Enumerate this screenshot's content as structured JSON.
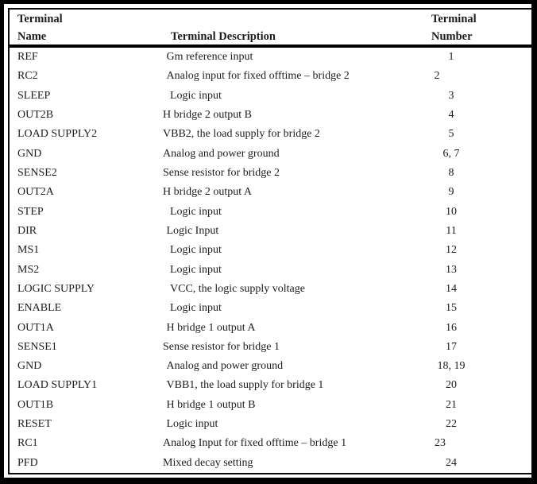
{
  "document": {
    "header": {
      "col_name": {
        "line1": "Terminal",
        "line2": "Name"
      },
      "col_description": "Terminal Description",
      "col_number": {
        "line1": "Terminal",
        "line2": "Number"
      }
    },
    "rows": [
      {
        "name": "REF",
        "description": "Gm reference input",
        "number": "1",
        "indent": 1,
        "num_shift": 0
      },
      {
        "name": "RC2",
        "description": "Analog input for fixed offtime – bridge 2",
        "number": "2",
        "indent": 1,
        "num_shift": -18
      },
      {
        "name": "SLEEP",
        "description": "Logic input",
        "number": "3",
        "indent": 2,
        "num_shift": 0
      },
      {
        "name": "OUT2B",
        "description": "H bridge 2 output B",
        "number": "4",
        "indent": 0,
        "num_shift": 0
      },
      {
        "name": "LOAD SUPPLY2",
        "description": "VBB2, the load supply for bridge 2",
        "number": "5",
        "indent": 0,
        "num_shift": 0
      },
      {
        "name": "GND",
        "description": "Analog and power ground",
        "number": "6, 7",
        "indent": 0,
        "num_shift": 0
      },
      {
        "name": "SENSE2",
        "description": "Sense resistor for bridge 2",
        "number": "8",
        "indent": 0,
        "num_shift": 0
      },
      {
        "name": "OUT2A",
        "description": "H bridge 2 output A",
        "number": "9",
        "indent": 0,
        "num_shift": 0
      },
      {
        "name": "STEP",
        "description": "Logic input",
        "number": "10",
        "indent": 2,
        "num_shift": 0
      },
      {
        "name": "DIR",
        "description": "Logic Input",
        "number": "11",
        "indent": 1,
        "num_shift": 0
      },
      {
        "name": "MS1",
        "description": "Logic input",
        "number": "12",
        "indent": 2,
        "num_shift": 0
      },
      {
        "name": "MS2",
        "description": "Logic input",
        "number": "13",
        "indent": 2,
        "num_shift": 0
      },
      {
        "name": "LOGIC SUPPLY",
        "description": "VCC, the logic supply voltage",
        "number": "14",
        "indent": 2,
        "num_shift": 0
      },
      {
        "name": "ENABLE",
        "description": "Logic input",
        "number": "15",
        "indent": 2,
        "num_shift": 0
      },
      {
        "name": "OUT1A",
        "description": "H bridge 1 output A",
        "number": "16",
        "indent": 1,
        "num_shift": 0
      },
      {
        "name": "SENSE1",
        "description": "Sense resistor for bridge 1",
        "number": "17",
        "indent": 0,
        "num_shift": 0
      },
      {
        "name": "GND",
        "description": "Analog and power ground",
        "number": "18, 19",
        "indent": 1,
        "num_shift": 0
      },
      {
        "name": "LOAD SUPPLY1",
        "description": "VBB1, the load supply for bridge 1",
        "number": "20",
        "indent": 1,
        "num_shift": 0
      },
      {
        "name": "OUT1B",
        "description": "H bridge 1 output B",
        "number": "21",
        "indent": 1,
        "num_shift": 0
      },
      {
        "name": "RESET",
        "description": "Logic input",
        "number": "22",
        "indent": 1,
        "num_shift": 0
      },
      {
        "name": "RC1",
        "description": "Analog Input for fixed offtime – bridge 1",
        "number": "23",
        "indent": 0,
        "num_shift": -14
      },
      {
        "name": "PFD",
        "description": "Mixed decay setting",
        "number": "24",
        "indent": 0,
        "num_shift": 0
      }
    ],
    "colors": {
      "outer_border": "#000000",
      "table_border": "#0a0a0a",
      "text": "#1c1c1c",
      "background": "#ffffff"
    }
  }
}
